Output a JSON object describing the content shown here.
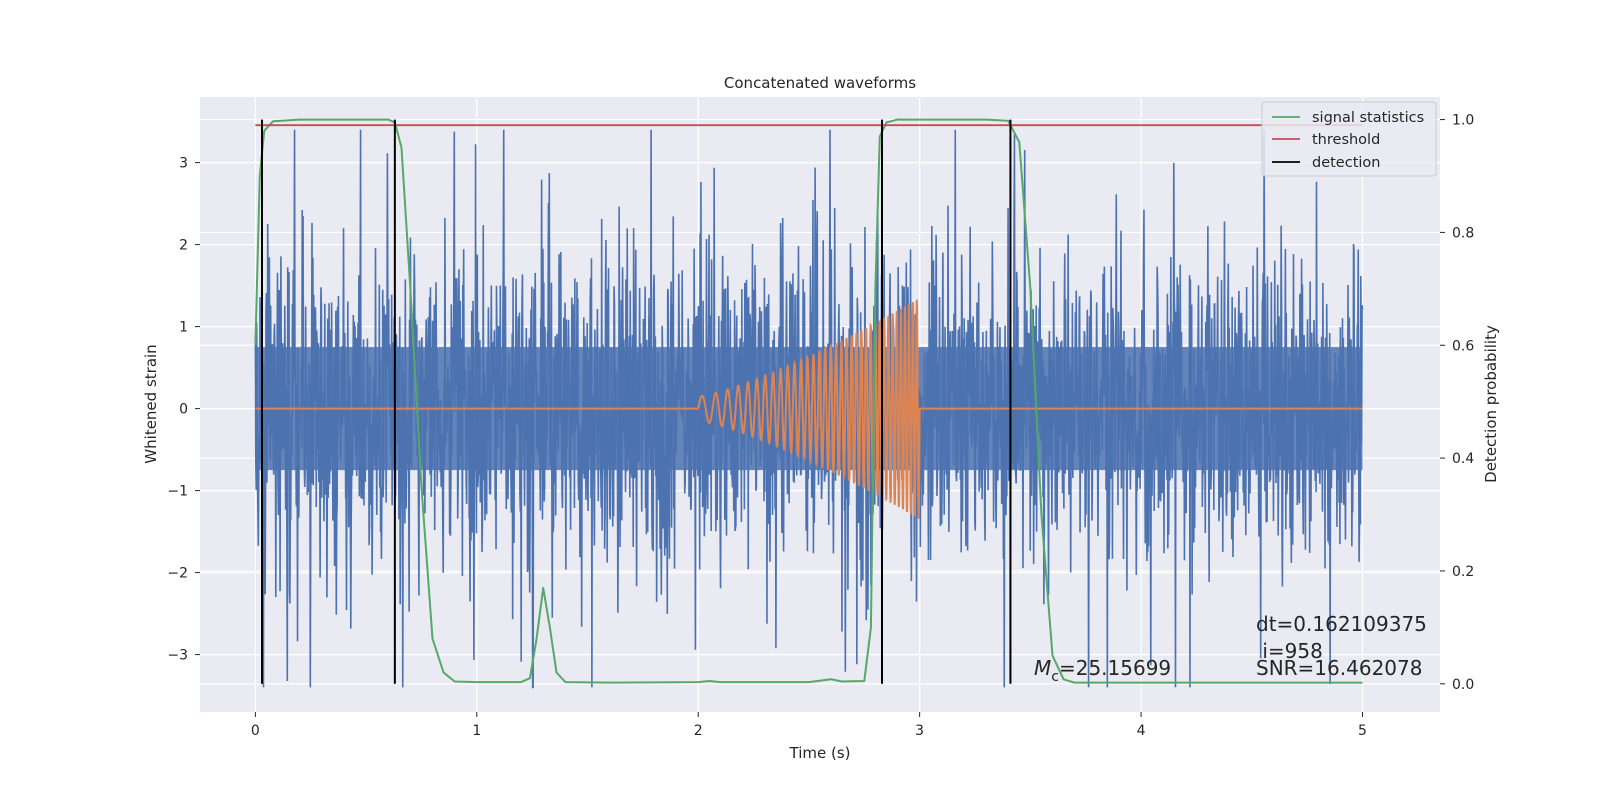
{
  "chart_data": {
    "type": "line",
    "title": "Concatenated waveforms",
    "xlabel": "Time (s)",
    "ylabel": "Whitened strain",
    "y2label": "Detection probability",
    "xlim": [
      -0.25,
      5.35
    ],
    "ylim": [
      -3.7,
      3.8
    ],
    "y2lim": [
      -0.05,
      1.04
    ],
    "xticks": [
      "0",
      "1",
      "2",
      "3",
      "4",
      "5"
    ],
    "yticks": [
      "−3",
      "−2",
      "−1",
      "0",
      "1",
      "2",
      "3"
    ],
    "y2ticks": [
      "0.0",
      "0.2",
      "0.4",
      "0.6",
      "0.8",
      "1.0"
    ],
    "xtick_values": [
      0,
      1,
      2,
      3,
      4,
      5
    ],
    "ytick_values": [
      -3,
      -2,
      -1,
      0,
      1,
      2,
      3
    ],
    "y2tick_values": [
      0,
      0.2,
      0.4,
      0.6,
      0.8,
      1.0
    ],
    "grid": true,
    "legend_position": "top-right",
    "legend": [
      "signal statistics",
      "threshold",
      "detection"
    ],
    "colors": {
      "strain": "#4c72b0",
      "template": "#dd8452",
      "signal_statistics": "#55a868",
      "threshold": "#c44e52",
      "detection": "#000000",
      "background": "#eaeaf2",
      "grid": "#ffffff"
    },
    "strain": {
      "x_start": 0,
      "x_end": 5,
      "core_amplitude": 0.75,
      "max_spike": 3.4,
      "note_visual": "noise"
    },
    "template": {
      "x_start": 2.0,
      "x_end": 3.0,
      "amplitude_start": 0.15,
      "amplitude_end": 1.35
    },
    "signal_statistics": {
      "x": [
        0,
        0.02,
        0.04,
        0.08,
        0.2,
        0.6,
        0.63,
        0.66,
        0.7,
        0.75,
        0.8,
        0.85,
        0.9,
        1.0,
        1.2,
        1.24,
        1.27,
        1.3,
        1.33,
        1.36,
        1.4,
        1.6,
        2.0,
        2.05,
        2.1,
        2.5,
        2.6,
        2.65,
        2.75,
        2.78,
        2.8,
        2.82,
        2.85,
        2.9,
        3.0,
        3.3,
        3.4,
        3.45,
        3.5,
        3.55,
        3.6,
        3.65,
        3.7,
        4.0,
        4.5,
        5.0
      ],
      "y": [
        0.6,
        0.9,
        0.98,
        0.997,
        1.0,
        1.0,
        0.995,
        0.95,
        0.7,
        0.35,
        0.08,
        0.02,
        0.004,
        0.003,
        0.003,
        0.01,
        0.08,
        0.17,
        0.1,
        0.02,
        0.003,
        0.002,
        0.003,
        0.005,
        0.003,
        0.003,
        0.008,
        0.004,
        0.005,
        0.1,
        0.7,
        0.97,
        0.995,
        1.0,
        1.0,
        1.0,
        0.998,
        0.96,
        0.7,
        0.3,
        0.05,
        0.008,
        0.002,
        0.002,
        0.002,
        0.002
      ]
    },
    "threshold": {
      "value": 0.99,
      "x_start": 0,
      "x_end": 5
    },
    "detections_x": [
      0.03,
      0.63,
      2.83,
      3.41
    ],
    "annotations": {
      "mc": {
        "symbol": "M",
        "subscript": "c",
        "text": "=25.15699"
      },
      "dt": "dt=0.162109375",
      "i": " i=958",
      "snr": "SNR=16.462078"
    }
  }
}
